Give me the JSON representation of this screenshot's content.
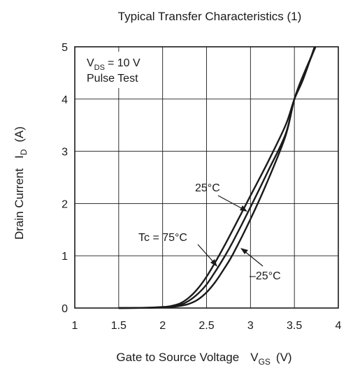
{
  "chart_data": {
    "type": "line",
    "title": "Typical Transfer Characteristics (1)",
    "xlabel": "Gate to Source Voltage",
    "xlabel_symbol": "V",
    "xlabel_subscript": "GS",
    "xlabel_unit": "(V)",
    "ylabel": "Drain Current",
    "ylabel_symbol": "I",
    "ylabel_subscript": "D",
    "ylabel_unit": "(A)",
    "xlim": [
      1,
      4
    ],
    "ylim": [
      0,
      5
    ],
    "x_ticks": [
      "1",
      "1.5",
      "2",
      "2.5",
      "3",
      "3.5",
      "4"
    ],
    "y_ticks": [
      "0",
      "1",
      "2",
      "3",
      "4",
      "5"
    ],
    "grid": true,
    "conditions": {
      "vds_symbol": "V",
      "vds_subscript": "DS",
      "vds_value": "= 10 V",
      "pulse": "Pulse Test"
    },
    "series": [
      {
        "name": "Tc = 75°C",
        "x": [
          1.5,
          1.8,
          2.0,
          2.1,
          2.2,
          2.3,
          2.4,
          2.5,
          2.6,
          2.7,
          2.8,
          3.0,
          3.2,
          3.4,
          3.5,
          3.6,
          3.73
        ],
        "y": [
          0.0,
          0.005,
          0.02,
          0.04,
          0.09,
          0.2,
          0.37,
          0.6,
          0.88,
          1.18,
          1.5,
          2.15,
          2.8,
          3.5,
          4.0,
          4.38,
          5.0
        ]
      },
      {
        "name": "25°C",
        "x": [
          1.5,
          1.8,
          2.0,
          2.1,
          2.2,
          2.3,
          2.4,
          2.5,
          2.6,
          2.7,
          2.8,
          3.0,
          3.2,
          3.4,
          3.5,
          3.6,
          3.74
        ],
        "y": [
          0.0,
          0.004,
          0.015,
          0.03,
          0.06,
          0.14,
          0.27,
          0.45,
          0.7,
          0.97,
          1.27,
          1.93,
          2.62,
          3.33,
          4.0,
          4.42,
          5.0
        ]
      },
      {
        "name": "-25°C",
        "x": [
          1.5,
          1.8,
          2.0,
          2.1,
          2.2,
          2.3,
          2.4,
          2.5,
          2.6,
          2.7,
          2.8,
          3.0,
          3.2,
          3.4,
          3.5,
          3.6,
          3.74
        ],
        "y": [
          0.0,
          0.003,
          0.01,
          0.02,
          0.04,
          0.08,
          0.16,
          0.3,
          0.5,
          0.75,
          1.03,
          1.7,
          2.45,
          3.3,
          4.0,
          4.45,
          5.0
        ]
      }
    ],
    "annotations": {
      "label_75": "Tc = 75°C",
      "label_25": "25°C",
      "label_m25": "–25°C"
    }
  }
}
